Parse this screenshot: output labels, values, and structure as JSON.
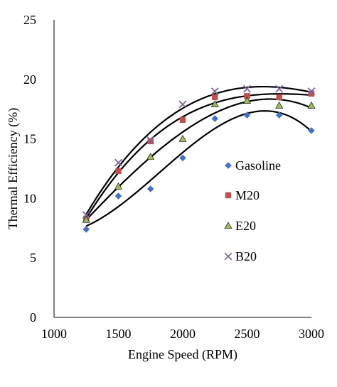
{
  "chart_data": {
    "type": "scatter",
    "xlabel": "Engine Speed (RPM)",
    "ylabel": "Thermal Efficiency (%)",
    "xlim": [
      1000,
      3000
    ],
    "ylim": [
      0,
      25
    ],
    "x_ticks": [
      1000,
      1500,
      2000,
      2500,
      3000
    ],
    "y_ticks": [
      0,
      5,
      10,
      15,
      20,
      25
    ],
    "grid": false,
    "legend_position": "right",
    "trendline": "polynomial",
    "x": [
      1250,
      1500,
      1750,
      2000,
      2250,
      2500,
      2750,
      3000
    ],
    "series": [
      {
        "name": "Gasoline",
        "marker": "diamond",
        "color": "#4472C4",
        "values": [
          7.4,
          10.2,
          10.8,
          13.4,
          16.7,
          17.0,
          17.0,
          15.7
        ]
      },
      {
        "name": "M20",
        "marker": "square",
        "color": "#C0504D",
        "values": [
          8.3,
          12.3,
          14.8,
          16.6,
          18.5,
          18.6,
          18.5,
          18.8
        ]
      },
      {
        "name": "E20",
        "marker": "triangle",
        "color": "#9BBB59",
        "values": [
          8.2,
          11.0,
          13.5,
          15.0,
          17.9,
          18.2,
          17.8,
          17.8
        ]
      },
      {
        "name": "B20",
        "marker": "x",
        "color": "#8064A2",
        "values": [
          8.6,
          13.0,
          14.9,
          17.9,
          19.0,
          19.2,
          19.2,
          19.0
        ]
      }
    ]
  }
}
